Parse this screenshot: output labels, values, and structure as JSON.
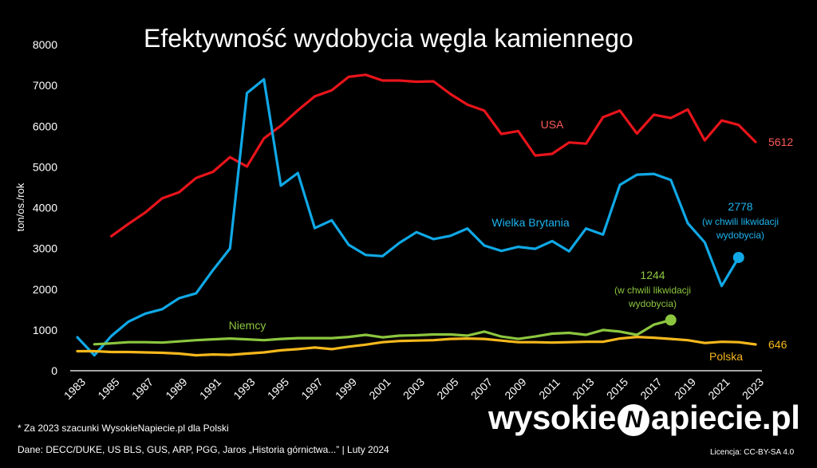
{
  "title": "Efektywność wydobycia węgla kamiennego",
  "footnote_estimate": "* Za 2023 szacunki WysokieNapiecie.pl dla Polski",
  "footnote_sources": "Dane: DECC/DUKE, US BLS, GUS, ARP, PGG, Jaros „Historia górnictwa...”  |  Luty 2024",
  "brand": {
    "left": "wysokie",
    "mark": "N",
    "right": "apiecie.pl"
  },
  "license": "Licencja: CC-BY-SA 4.0",
  "chart_data": {
    "type": "line",
    "ylabel": "ton/os./rok",
    "xlabel": "",
    "xlim": [
      1983,
      2023
    ],
    "ylim": [
      0,
      8000
    ],
    "xticks": [
      1983,
      1985,
      1987,
      1989,
      1991,
      1993,
      1995,
      1997,
      1999,
      2001,
      2003,
      2005,
      2007,
      2009,
      2011,
      2013,
      2015,
      2017,
      2019,
      2021,
      2023
    ],
    "yticks": [
      0,
      1000,
      2000,
      3000,
      4000,
      5000,
      6000,
      7000,
      8000
    ],
    "grid": false,
    "series": [
      {
        "name": "USA",
        "color": "#e8141b",
        "label_color": "#ff5a5a",
        "x": [
          1985,
          1986,
          1987,
          1988,
          1989,
          1990,
          1991,
          1992,
          1993,
          1994,
          1995,
          1996,
          1997,
          1998,
          1999,
          2000,
          2001,
          2002,
          2003,
          2004,
          2005,
          2006,
          2007,
          2008,
          2009,
          2010,
          2011,
          2012,
          2013,
          2014,
          2015,
          2016,
          2017,
          2018,
          2019,
          2020,
          2021,
          2022,
          2023
        ],
        "y": [
          3300,
          3600,
          3880,
          4230,
          4380,
          4730,
          4880,
          5240,
          5010,
          5700,
          6010,
          6390,
          6730,
          6880,
          7210,
          7260,
          7120,
          7120,
          7090,
          7100,
          6790,
          6530,
          6380,
          5810,
          5880,
          5280,
          5320,
          5600,
          5570,
          6220,
          6380,
          5820,
          6280,
          6200,
          6410,
          5650,
          6140,
          6030,
          5612
        ]
      },
      {
        "name": "Wielka Brytania",
        "color": "#10a8e6",
        "label_color": "#1eb4ee",
        "x": [
          1983,
          1984,
          1985,
          1986,
          1987,
          1988,
          1989,
          1990,
          1991,
          1992,
          1993,
          1994,
          1995,
          1996,
          1997,
          1998,
          1999,
          2000,
          2001,
          2002,
          2003,
          2004,
          2005,
          2006,
          2007,
          2008,
          2009,
          2010,
          2011,
          2012,
          2013,
          2014,
          2015,
          2016,
          2017,
          2018,
          2019,
          2020,
          2021,
          2022
        ],
        "y": [
          820,
          380,
          850,
          1200,
          1400,
          1510,
          1780,
          1900,
          2470,
          3000,
          6810,
          7150,
          4540,
          4850,
          3500,
          3690,
          3090,
          2840,
          2810,
          3140,
          3400,
          3230,
          3310,
          3490,
          3070,
          2940,
          3040,
          2990,
          3180,
          2930,
          3490,
          3340,
          4560,
          4810,
          4830,
          4680,
          3620,
          3150,
          2080,
          2778
        ],
        "end_label": "2778",
        "end_note": [
          "(w chwili likwidacji",
          "wydobycia)"
        ]
      },
      {
        "name": "Niemcy",
        "color": "#8cc63f",
        "label_color": "#8cc63f",
        "x": [
          1984,
          1985,
          1986,
          1987,
          1988,
          1989,
          1990,
          1991,
          1992,
          1993,
          1994,
          1995,
          1996,
          1997,
          1998,
          1999,
          2000,
          2001,
          2002,
          2003,
          2004,
          2005,
          2006,
          2007,
          2008,
          2009,
          2010,
          2011,
          2012,
          2013,
          2014,
          2015,
          2016,
          2017,
          2018
        ],
        "y": [
          650,
          670,
          700,
          700,
          690,
          720,
          750,
          770,
          790,
          770,
          750,
          780,
          800,
          800,
          800,
          830,
          880,
          820,
          860,
          870,
          890,
          890,
          860,
          960,
          840,
          780,
          840,
          910,
          930,
          880,
          1000,
          960,
          880,
          1130,
          1244
        ],
        "end_label": "1244",
        "end_note": [
          "(w chwili likwidacji",
          "wydobycia)"
        ]
      },
      {
        "name": "Polska",
        "color": "#f5b81c",
        "label_color": "#f5b81c",
        "x": [
          1983,
          1984,
          1985,
          1986,
          1987,
          1988,
          1989,
          1990,
          1991,
          1992,
          1993,
          1994,
          1995,
          1996,
          1997,
          1998,
          1999,
          2000,
          2001,
          2002,
          2003,
          2004,
          2005,
          2006,
          2007,
          2008,
          2009,
          2010,
          2011,
          2012,
          2013,
          2014,
          2015,
          2016,
          2017,
          2018,
          2019,
          2020,
          2021,
          2022,
          2023
        ],
        "y": [
          480,
          480,
          460,
          460,
          450,
          440,
          420,
          380,
          400,
          390,
          420,
          450,
          500,
          530,
          570,
          530,
          590,
          640,
          700,
          730,
          740,
          750,
          780,
          790,
          780,
          740,
          700,
          700,
          690,
          700,
          710,
          710,
          790,
          830,
          810,
          780,
          750,
          680,
          710,
          700,
          646
        ],
        "end_label": "646"
      }
    ],
    "annotation_usa_value": "5612"
  }
}
